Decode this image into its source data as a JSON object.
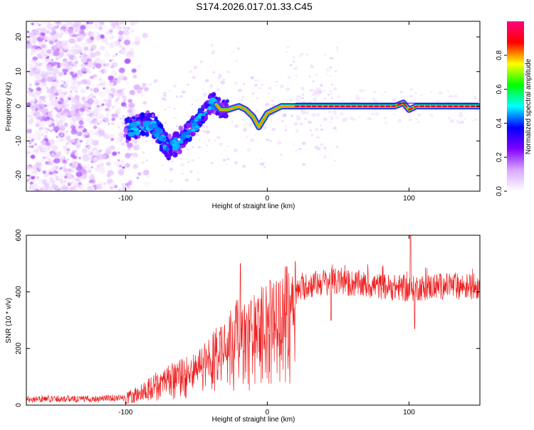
{
  "title": "S174.2026.017.01.33.C45",
  "chart_data": [
    {
      "type": "heatmap",
      "name": "spectrogram",
      "xlabel": "Height of straight line (km)",
      "ylabel": "Frequency (Hz)",
      "xlim": [
        -170,
        150
      ],
      "ylim": [
        -24.5,
        24.5
      ],
      "xticks": [
        -100,
        0,
        100
      ],
      "xtick_labels": [
        "-100",
        "0",
        "100"
      ],
      "yticks": [
        -20,
        -10,
        0,
        10,
        20
      ],
      "ytick_labels": [
        "-20",
        "-10",
        "0",
        "10",
        "20"
      ],
      "colorbar": {
        "label": "Normalized spectral amplitude",
        "range": [
          0,
          1
        ],
        "ticks": [
          0.0,
          0.2,
          0.4,
          0.6,
          0.8
        ],
        "tick_labels": [
          "0.0",
          "0.2",
          "0.4",
          "0.6",
          "0.8"
        ],
        "colors": [
          "#ffffff",
          "#d9a7ff",
          "#8000ff",
          "#0000ff",
          "#00ffff",
          "#00ff00",
          "#ffff00",
          "#ff0000",
          "#ff0080"
        ]
      },
      "ridge": {
        "x": [
          -100,
          -90,
          -85,
          -80,
          -75,
          -70,
          -62,
          -55,
          -50,
          -42,
          -37,
          -33,
          -28,
          -20,
          -15,
          -10,
          -6,
          -3,
          0,
          5,
          10,
          20,
          30,
          60,
          90,
          96,
          100,
          105,
          120,
          148
        ],
        "y": [
          -7,
          -6,
          -5,
          -6,
          -9,
          -12,
          -10,
          -7,
          -5,
          0,
          1,
          -1,
          -1,
          0,
          -1,
          -3,
          -6,
          -4,
          -2,
          -1,
          0,
          0,
          0,
          0,
          0,
          1,
          -1,
          0,
          0,
          0
        ]
      }
    },
    {
      "type": "line",
      "name": "snr",
      "xlabel": "Height of straight line (km)",
      "ylabel": "SNR (10 * v/v)",
      "xlim": [
        -170,
        150
      ],
      "ylim": [
        0,
        600
      ],
      "xticks": [
        -100,
        0,
        100
      ],
      "xtick_labels": [
        "-100",
        "0",
        "100"
      ],
      "yticks": [
        0,
        200,
        400,
        600
      ],
      "ytick_labels": [
        "0",
        "200",
        "400",
        "600"
      ],
      "color": "#ef2020",
      "series": [
        {
          "name": "SNR",
          "x": [
            -170,
            -150,
            -130,
            -110,
            -100,
            -95,
            -90,
            -85,
            -80,
            -75,
            -70,
            -65,
            -60,
            -55,
            -50,
            -45,
            -40,
            -35,
            -30,
            -25,
            -20,
            -15,
            -10,
            -5,
            0,
            5,
            10,
            15,
            20,
            25,
            30,
            35,
            40,
            50,
            60,
            70,
            80,
            90,
            95,
            100,
            105,
            110,
            120,
            130,
            140,
            150
          ],
          "y": [
            20,
            22,
            20,
            24,
            25,
            30,
            40,
            55,
            70,
            80,
            90,
            100,
            110,
            120,
            130,
            150,
            170,
            200,
            230,
            250,
            260,
            250,
            270,
            290,
            300,
            310,
            330,
            360,
            390,
            410,
            420,
            425,
            430,
            430,
            425,
            420,
            415,
            410,
            410,
            400,
            410,
            410,
            415,
            415,
            415,
            415
          ]
        }
      ],
      "spikes": [
        {
          "x": -19,
          "y": 500
        },
        {
          "x": 2,
          "y": 440
        },
        {
          "x": 45,
          "y": 300
        },
        {
          "x": 101,
          "y": 600
        },
        {
          "x": 104,
          "y": 270
        }
      ]
    }
  ]
}
